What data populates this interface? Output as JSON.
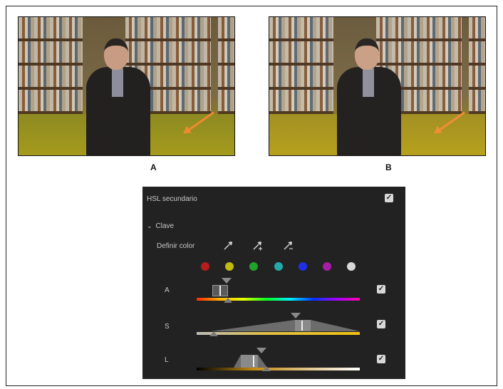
{
  "figure": {
    "label_a": "A",
    "label_b": "B"
  },
  "panel": {
    "title": "HSL secundario",
    "enabled": true,
    "section_title": "Clave",
    "define_color_label": "Definir color",
    "eyedroppers": [
      "eyedropper-icon",
      "eyedropper-add-icon",
      "eyedropper-subtract-icon"
    ],
    "swatches": [
      {
        "name": "red",
        "color": "#b51d1d"
      },
      {
        "name": "yellow",
        "color": "#c2ba11"
      },
      {
        "name": "green",
        "color": "#21a32b"
      },
      {
        "name": "cyan",
        "color": "#22aaa6"
      },
      {
        "name": "blue",
        "color": "#1f2fe8"
      },
      {
        "name": "magenta",
        "color": "#a81da6"
      },
      {
        "name": "white",
        "color": "#d8d8d8"
      }
    ],
    "rows": [
      {
        "label": "A",
        "checked": true
      },
      {
        "label": "S",
        "checked": true
      },
      {
        "label": "L",
        "checked": true
      }
    ]
  },
  "colors": {
    "arrow": "#f08a30",
    "panel_bg": "#222222"
  }
}
